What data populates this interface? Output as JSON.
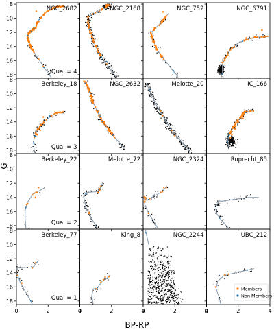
{
  "figure": {
    "xlabel": "BP-RP",
    "ylabel": "G",
    "xticks": [
      "0",
      "2",
      "4"
    ],
    "yticks": [
      "8",
      "10",
      "12",
      "14",
      "16",
      "18"
    ]
  },
  "legend": {
    "members_label": "Members",
    "nonmembers_label": "Non Members",
    "members_color": "#ff7f0e",
    "nonmembers_color": "#1f77b4",
    "field_color": "#000000",
    "isochrone_color": "#8c9fb0"
  },
  "chart_data": {
    "type": "scatter",
    "xlim": [
      0,
      4
    ],
    "ylim": [
      18.5,
      8
    ],
    "xlabel": "BP-RP",
    "ylabel": "G",
    "panels": [
      {
        "name": "NGC_2682",
        "qual": "Qual = 4",
        "field_n": 30,
        "member_n": 110,
        "isochrone": [
          [
            3.0,
            8.2
          ],
          [
            2.4,
            8.5
          ],
          [
            1.8,
            9.2
          ],
          [
            1.4,
            10.3
          ],
          [
            1.2,
            11.3
          ],
          [
            1.0,
            11.7
          ],
          [
            0.8,
            12.0
          ],
          [
            0.7,
            12.6
          ],
          [
            0.75,
            13.2
          ],
          [
            0.9,
            14.0
          ],
          [
            1.1,
            14.8
          ],
          [
            1.4,
            15.8
          ],
          [
            1.7,
            16.8
          ],
          [
            2.0,
            17.8
          ],
          [
            2.2,
            18.4
          ]
        ],
        "members": [
          [
            0.7,
            12.6
          ],
          [
            0.75,
            13.2
          ],
          [
            0.9,
            14.0
          ],
          [
            1.1,
            14.8
          ],
          [
            1.4,
            15.8
          ],
          [
            1.7,
            16.8
          ],
          [
            1.25,
            9.0
          ],
          [
            1.1,
            11.5
          ]
        ]
      },
      {
        "name": "NGC_2168",
        "qual": "",
        "field_n": 260,
        "member_n": 60,
        "isochrone": [
          [
            1.9,
            8.1
          ],
          [
            1.7,
            8.2
          ],
          [
            1.6,
            8.5
          ],
          [
            0.5,
            9.8
          ],
          [
            0.55,
            11.0
          ],
          [
            0.75,
            12.5
          ],
          [
            1.0,
            14.0
          ],
          [
            1.3,
            15.3
          ],
          [
            1.7,
            16.5
          ],
          [
            2.1,
            17.7
          ],
          [
            2.3,
            18.4
          ]
        ],
        "members": [
          [
            0.55,
            11.0
          ],
          [
            0.75,
            12.5
          ],
          [
            1.0,
            14.0
          ],
          [
            1.3,
            15.3
          ],
          [
            1.7,
            16.5
          ]
        ]
      },
      {
        "name": "NGC_752",
        "qual": "",
        "field_n": 40,
        "member_n": 50,
        "isochrone": [
          [
            1.6,
            9.3
          ],
          [
            1.25,
            10.3
          ],
          [
            1.15,
            10.6
          ],
          [
            0.5,
            12.0
          ],
          [
            0.6,
            13.0
          ],
          [
            0.9,
            14.5
          ],
          [
            1.3,
            15.8
          ],
          [
            1.8,
            17.2
          ],
          [
            2.1,
            18.0
          ],
          [
            2.2,
            18.4
          ]
        ],
        "members": [
          [
            1.25,
            9.1
          ],
          [
            1.15,
            10.6
          ],
          [
            0.6,
            13.0
          ],
          [
            0.9,
            14.5
          ],
          [
            1.3,
            15.8
          ]
        ]
      },
      {
        "name": "NGC_6791",
        "qual": "",
        "field_n": 260,
        "member_n": 30,
        "isochrone": [
          [
            3.9,
            12.6
          ],
          [
            3.0,
            12.7
          ],
          [
            2.0,
            13.5
          ],
          [
            1.5,
            14.5
          ],
          [
            1.2,
            15.5
          ],
          [
            1.0,
            16.5
          ],
          [
            1.0,
            17.6
          ],
          [
            1.05,
            18.4
          ]
        ],
        "members": [
          [
            3.5,
            11.7
          ],
          [
            2.5,
            12.8
          ],
          [
            1.6,
            14.2
          ],
          [
            1.2,
            15.5
          ]
        ]
      },
      {
        "name": "Berkeley_18",
        "qual": "Qual = 3",
        "field_n": 70,
        "member_n": 30,
        "isochrone": [
          [
            3.0,
            12.6
          ],
          [
            2.5,
            12.7
          ],
          [
            2.0,
            13.5
          ],
          [
            1.5,
            14.5
          ],
          [
            1.25,
            15.5
          ],
          [
            1.1,
            16.5
          ],
          [
            1.1,
            17.6
          ],
          [
            1.15,
            18.4
          ]
        ],
        "members": [
          [
            1.7,
            13.3
          ],
          [
            1.6,
            14.5
          ],
          [
            1.5,
            15.2
          ],
          [
            1.3,
            15.8
          ]
        ]
      },
      {
        "name": "NGC_2632",
        "qual": "",
        "field_n": 80,
        "member_n": 90,
        "isochrone": [
          [
            0.3,
            8.2
          ],
          [
            0.6,
            9.5
          ],
          [
            0.8,
            11.0
          ],
          [
            1.1,
            12.5
          ],
          [
            1.4,
            13.8
          ],
          [
            1.8,
            15.0
          ],
          [
            2.2,
            16.2
          ],
          [
            2.6,
            17.2
          ],
          [
            2.8,
            17.8
          ]
        ],
        "members": [
          [
            0.4,
            8.5
          ],
          [
            0.8,
            11.0
          ],
          [
            1.1,
            12.5
          ],
          [
            1.4,
            13.8
          ],
          [
            1.8,
            15.0
          ],
          [
            2.2,
            16.2
          ]
        ]
      },
      {
        "name": "Melotte_20",
        "qual": "",
        "field_n": 250,
        "member_n": 2,
        "isochrone": [
          [
            0.2,
            8.5
          ],
          [
            0.5,
            10.0
          ],
          [
            0.8,
            11.5
          ],
          [
            1.2,
            13.0
          ],
          [
            1.6,
            14.5
          ],
          [
            2.1,
            16.0
          ],
          [
            2.6,
            17.3
          ],
          [
            3.0,
            18.3
          ]
        ],
        "members": [
          [
            1.1,
            12.5
          ],
          [
            1.8,
            15.2
          ]
        ]
      },
      {
        "name": "IC_166",
        "qual": "",
        "field_n": 250,
        "member_n": 55,
        "isochrone": [
          [
            3.0,
            12.4
          ],
          [
            2.4,
            12.6
          ],
          [
            2.1,
            13.5
          ],
          [
            1.7,
            14.7
          ],
          [
            1.45,
            15.8
          ],
          [
            1.35,
            16.5
          ],
          [
            1.4,
            17.6
          ]
        ],
        "members": [
          [
            2.2,
            13.2
          ],
          [
            2.0,
            14.0
          ],
          [
            1.8,
            15.0
          ],
          [
            1.6,
            15.8
          ],
          [
            1.5,
            16.2
          ],
          [
            2.3,
            13.5
          ]
        ]
      },
      {
        "name": "Berkeley_22",
        "qual": "Qual = 2",
        "field_n": 6,
        "member_n": 6,
        "isochrone": [
          [
            1.8,
            12.6
          ],
          [
            1.5,
            13.0
          ],
          [
            1.05,
            13.5
          ],
          [
            0.7,
            14.7
          ],
          [
            0.55,
            15.8
          ],
          [
            0.55,
            17.0
          ],
          [
            0.6,
            18.4
          ]
        ],
        "members": [
          [
            1.4,
            12.6
          ],
          [
            1.3,
            13.3
          ],
          [
            1.2,
            14.0
          ]
        ]
      },
      {
        "name": "Melotte_72",
        "qual": "",
        "field_n": 80,
        "member_n": 4,
        "isochrone": [
          [
            1.45,
            11.9
          ],
          [
            1.3,
            12.6
          ],
          [
            1.1,
            13.2
          ],
          [
            0.4,
            13.3
          ],
          [
            0.25,
            14.0
          ],
          [
            0.4,
            15.5
          ],
          [
            0.7,
            16.8
          ],
          [
            1.0,
            18.0
          ],
          [
            1.1,
            18.4
          ]
        ],
        "members": [
          [
            1.25,
            13.0
          ],
          [
            1.15,
            13.3
          ]
        ]
      },
      {
        "name": "NGC_2324",
        "qual": "",
        "field_n": 40,
        "member_n": 8,
        "isochrone": [
          [
            1.5,
            12.4
          ],
          [
            1.2,
            13.2
          ],
          [
            0.7,
            13.8
          ],
          [
            0.25,
            14.4
          ],
          [
            0.1,
            13.9
          ],
          [
            0.1,
            15.0
          ],
          [
            0.35,
            16.3
          ],
          [
            0.7,
            17.5
          ],
          [
            0.9,
            18.3
          ]
        ],
        "members": [
          [
            1.3,
            12.6
          ],
          [
            1.1,
            13.3
          ],
          [
            0.4,
            14.2
          ]
        ]
      },
      {
        "name": "Ruprecht_85",
        "qual": "",
        "field_n": 70,
        "member_n": 0,
        "isochrone": [
          [
            3.3,
            14.0
          ],
          [
            2.6,
            14.0
          ],
          [
            2.0,
            14.2
          ],
          [
            0.8,
            14.6
          ],
          [
            0.6,
            15.2
          ],
          [
            0.6,
            16.2
          ],
          [
            1.0,
            17.4
          ],
          [
            1.4,
            18.4
          ]
        ],
        "members": []
      },
      {
        "name": "Berkeley_77",
        "qual": "Qual = 1",
        "field_n": 30,
        "member_n": 3,
        "isochrone": [
          [
            1.4,
            12.2
          ],
          [
            1.1,
            13.1
          ],
          [
            0.9,
            13.3
          ],
          [
            0.1,
            13.2
          ],
          [
            0.0,
            13.9
          ],
          [
            0.25,
            15.4
          ],
          [
            0.6,
            16.8
          ],
          [
            0.9,
            18.0
          ],
          [
            1.0,
            18.4
          ]
        ],
        "members": [
          [
            1.2,
            12.6
          ],
          [
            1.0,
            13.3
          ]
        ]
      },
      {
        "name": "King_8",
        "qual": "",
        "field_n": 25,
        "member_n": 3,
        "isochrone": [
          [
            1.9,
            14.3
          ],
          [
            1.7,
            14.8
          ],
          [
            1.4,
            15.2
          ],
          [
            1.1,
            16.2
          ],
          [
            0.85,
            16.3
          ],
          [
            0.75,
            17.3
          ],
          [
            0.85,
            18.4
          ]
        ],
        "members": [
          [
            1.6,
            14.6
          ],
          [
            1.5,
            15.0
          ]
        ]
      },
      {
        "name": "NGC_2244",
        "qual": "",
        "field_n": 520,
        "member_n": 0,
        "isochrone": [
          [
            0.15,
            8.0
          ],
          [
            0.25,
            9.0
          ],
          [
            0.35,
            10.0
          ]
        ],
        "members": []
      },
      {
        "name": "UBC_212",
        "qual": "",
        "field_n": 35,
        "member_n": 2,
        "isochrone": [
          [
            3.0,
            13.4
          ],
          [
            2.4,
            13.7
          ],
          [
            1.8,
            14.0
          ],
          [
            1.1,
            14.4
          ],
          [
            0.7,
            15.2
          ],
          [
            0.6,
            16.2
          ],
          [
            0.75,
            17.2
          ],
          [
            0.9,
            18.4
          ]
        ],
        "members": [
          [
            1.4,
            14.2
          ]
        ]
      }
    ]
  }
}
